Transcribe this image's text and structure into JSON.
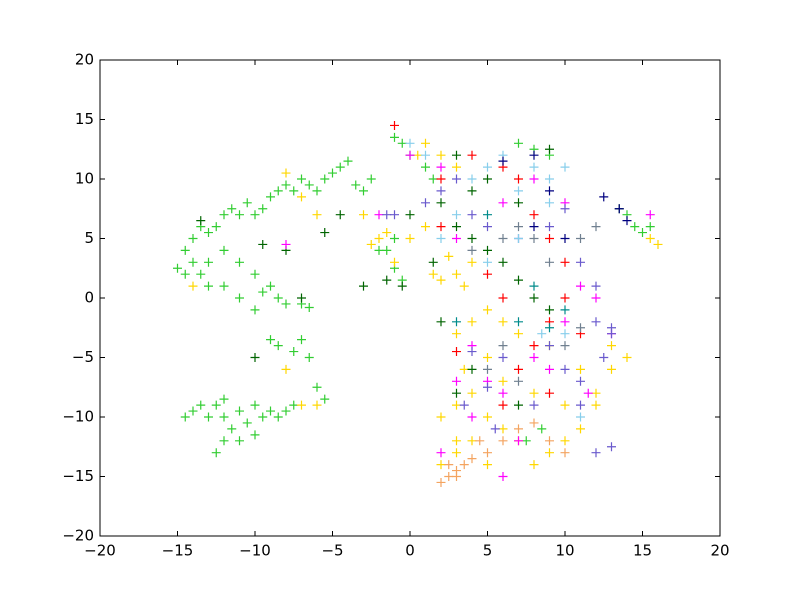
{
  "chart_data": {
    "type": "scatter",
    "marker": "plus",
    "xlim": [
      -20,
      20
    ],
    "ylim": [
      -20,
      20
    ],
    "xticks": [
      {
        "value": -20,
        "label": "−20"
      },
      {
        "value": -15,
        "label": "−15"
      },
      {
        "value": -10,
        "label": "−10"
      },
      {
        "value": -5,
        "label": "−5"
      },
      0,
      5,
      10,
      15,
      20
    ],
    "yticks": [
      {
        "value": -20,
        "label": "−20"
      },
      {
        "value": -15,
        "label": "−15"
      },
      {
        "value": -10,
        "label": "−10"
      },
      {
        "value": -5,
        "label": "−5"
      },
      0,
      5,
      10,
      15,
      20
    ],
    "series": [
      {
        "color": "#32cd32",
        "x": [
          -14.5,
          -14,
          -13.5,
          -13,
          -12.5,
          -12,
          -11.5,
          -11,
          -10.5,
          -10,
          -9.5,
          -9,
          -8.5,
          -8,
          -7.5,
          -7,
          -6.5,
          -6,
          -5.5,
          -5,
          -4.5,
          -4,
          -3.5,
          -3,
          -2.5,
          -14,
          -13.5,
          -13,
          -12,
          -11,
          -10,
          -9,
          -8.5,
          -8,
          -7,
          -6.5,
          -12,
          -11,
          -10,
          -9.5,
          -13,
          -14.5,
          -15,
          -9,
          -8.5,
          -7.5,
          -7,
          -6.5,
          -6,
          -5.5,
          -14.5,
          -14,
          -13.5,
          -13,
          -12.5,
          -12,
          -11.5,
          -11,
          -10.5,
          -10,
          -9.5,
          -9,
          -8.5,
          -8,
          -7.5,
          -12,
          -11,
          -10,
          -12,
          -12.5,
          -1,
          -0.5,
          0,
          1,
          1.5,
          -1,
          -1.5,
          -1,
          -0.5,
          -2,
          14,
          14.5,
          15,
          15.5,
          7,
          8,
          9,
          7.5,
          8.5
        ],
        "values": [
          4,
          5,
          6,
          5.5,
          6,
          7,
          7.5,
          7,
          8,
          7,
          7.5,
          8.5,
          9,
          9.5,
          9,
          10,
          9.5,
          9,
          10,
          10.5,
          11,
          11.5,
          9.5,
          9,
          10,
          3,
          2,
          3,
          4,
          3,
          2,
          1,
          0,
          -0.5,
          -0.5,
          -0.8,
          1,
          0,
          -1,
          0.5,
          1,
          2,
          2.5,
          -3.5,
          -4,
          -4.5,
          -3.5,
          -5,
          -7.5,
          -8.5,
          -10,
          -9.5,
          -9,
          -10,
          -9,
          -10,
          -11,
          -9.5,
          -10.5,
          -9,
          -10,
          -9.5,
          -10,
          -9.5,
          -9,
          -8.5,
          -12,
          -11.5,
          -12,
          -13,
          13.5,
          13,
          12,
          11,
          10,
          5,
          4,
          2.5,
          1.5,
          4,
          7,
          6,
          5.5,
          6,
          13,
          12.5,
          12,
          -12,
          -11
        ]
      },
      {
        "color": "#ffd700",
        "x": [
          -8,
          -7,
          -6,
          -3,
          -2.5,
          -2,
          -1,
          0,
          1,
          1.5,
          2,
          3,
          3.5,
          4,
          2.5,
          0.5,
          1,
          2,
          3,
          3,
          4,
          5,
          3.5,
          4,
          3,
          5,
          6,
          7,
          4,
          3,
          2,
          5,
          8,
          9,
          10,
          11,
          12,
          13,
          14,
          13,
          11,
          9,
          7,
          5,
          6,
          8,
          10,
          16,
          15.5,
          -14,
          -8,
          -7,
          -6,
          -1.5,
          12,
          6,
          2,
          3
        ],
        "values": [
          10.5,
          8.5,
          7,
          7,
          4.5,
          5,
          3,
          5,
          6,
          2,
          1.5,
          2,
          1,
          3,
          3.5,
          12,
          13,
          12,
          11,
          -3,
          -2,
          -5,
          -6,
          -8,
          -9,
          -10,
          -11,
          -12,
          -12,
          -13,
          -14,
          -14,
          -14,
          -13,
          -12,
          -11,
          -8,
          -6,
          -5,
          -4,
          -6,
          -4,
          -3,
          -1,
          -7,
          -8,
          -9,
          4.5,
          5,
          1,
          -6,
          -9,
          -9,
          5.5,
          -9,
          -2,
          -10,
          -12
        ]
      },
      {
        "color": "#f4a460",
        "x": [
          2,
          2.5,
          3,
          3.5,
          4,
          5,
          6,
          7,
          8,
          9,
          10,
          4.5,
          2.5,
          3
        ],
        "values": [
          -15.5,
          -15,
          -14.5,
          -14,
          -13.5,
          -13,
          -12,
          -11,
          -10.5,
          -12,
          -13,
          -12,
          -14,
          -15
        ]
      },
      {
        "color": "#006400",
        "x": [
          -13.5,
          -9.5,
          -8,
          -7,
          -5.5,
          -4.5,
          -3,
          -1.5,
          -0.5,
          0,
          2,
          3,
          4,
          5,
          6,
          7,
          8,
          9,
          5,
          4,
          3,
          7,
          9,
          13.5,
          2,
          4,
          7,
          3,
          1.5,
          -10
        ],
        "values": [
          6.5,
          4.5,
          4,
          0,
          5.5,
          7,
          1,
          1.5,
          1,
          7,
          8,
          6,
          5,
          4,
          3,
          1.5,
          0,
          -1,
          10,
          9,
          12,
          8,
          12.5,
          7.5,
          -2,
          -6,
          -9,
          -8,
          3,
          -5
        ]
      },
      {
        "color": "#ff00ff",
        "x": [
          -8,
          0,
          2,
          3,
          6,
          8,
          10,
          11,
          12,
          10,
          13,
          4,
          5,
          6,
          8,
          9,
          3,
          7,
          2,
          15.5,
          -2,
          11.5,
          6,
          4
        ],
        "values": [
          4.5,
          12,
          11,
          5,
          8,
          10,
          8,
          1,
          0,
          -2,
          -3,
          -4,
          -7,
          -8,
          -5,
          -6,
          -7,
          -12,
          -13,
          7,
          7,
          -8,
          -15,
          -10
        ]
      },
      {
        "color": "#6a5acd",
        "x": [
          -1.5,
          -1,
          1,
          2,
          3,
          4,
          5,
          7,
          9,
          10,
          11,
          12,
          13,
          12.5,
          11,
          9,
          6,
          5,
          4,
          3.5,
          5.5,
          8,
          10,
          12,
          13,
          11,
          13,
          12
        ],
        "values": [
          7,
          7,
          8,
          9,
          10,
          7,
          6,
          5,
          6,
          7.5,
          3,
          -2,
          -3,
          -5,
          -7,
          -4,
          -5,
          -7.5,
          -4.5,
          -9,
          -11,
          -9,
          -6,
          1,
          -2.5,
          -9,
          -12.5,
          -13
        ]
      },
      {
        "color": "#87ceeb",
        "x": [
          0,
          1,
          4,
          5,
          6,
          7,
          8,
          9,
          10,
          3,
          2,
          5,
          7,
          9,
          8.5,
          10,
          11
        ],
        "values": [
          13,
          12,
          10,
          11,
          12,
          9,
          11,
          10,
          11,
          7,
          5,
          3,
          5,
          8,
          -3,
          -3,
          -10
        ]
      },
      {
        "color": "#ff0000",
        "x": [
          -1,
          2,
          4,
          6,
          7,
          8,
          9,
          10,
          5,
          6,
          9,
          10,
          7,
          8,
          9,
          6,
          3,
          2,
          11
        ],
        "values": [
          14.5,
          10,
          12,
          11,
          10,
          7,
          5,
          3,
          2,
          0,
          -2,
          0,
          -6,
          -4,
          -8,
          -9,
          -4.5,
          6,
          -3
        ]
      },
      {
        "color": "#000080",
        "x": [
          6,
          8,
          9,
          12.5,
          13.5,
          14,
          8,
          10
        ],
        "values": [
          11.5,
          12,
          9,
          8.5,
          7.5,
          6.5,
          6,
          5
        ]
      },
      {
        "color": "#708090",
        "x": [
          4,
          6,
          7,
          8,
          9,
          11,
          12,
          11,
          10,
          5,
          7,
          6
        ],
        "values": [
          4,
          5,
          6,
          5,
          3,
          5,
          6,
          -2.5,
          -4,
          -6,
          -7,
          -4
        ]
      },
      {
        "color": "#008b8b",
        "x": [
          7,
          9,
          8,
          10,
          5,
          3
        ],
        "values": [
          -2,
          -2.5,
          1,
          -1,
          7,
          -2
        ]
      }
    ]
  }
}
